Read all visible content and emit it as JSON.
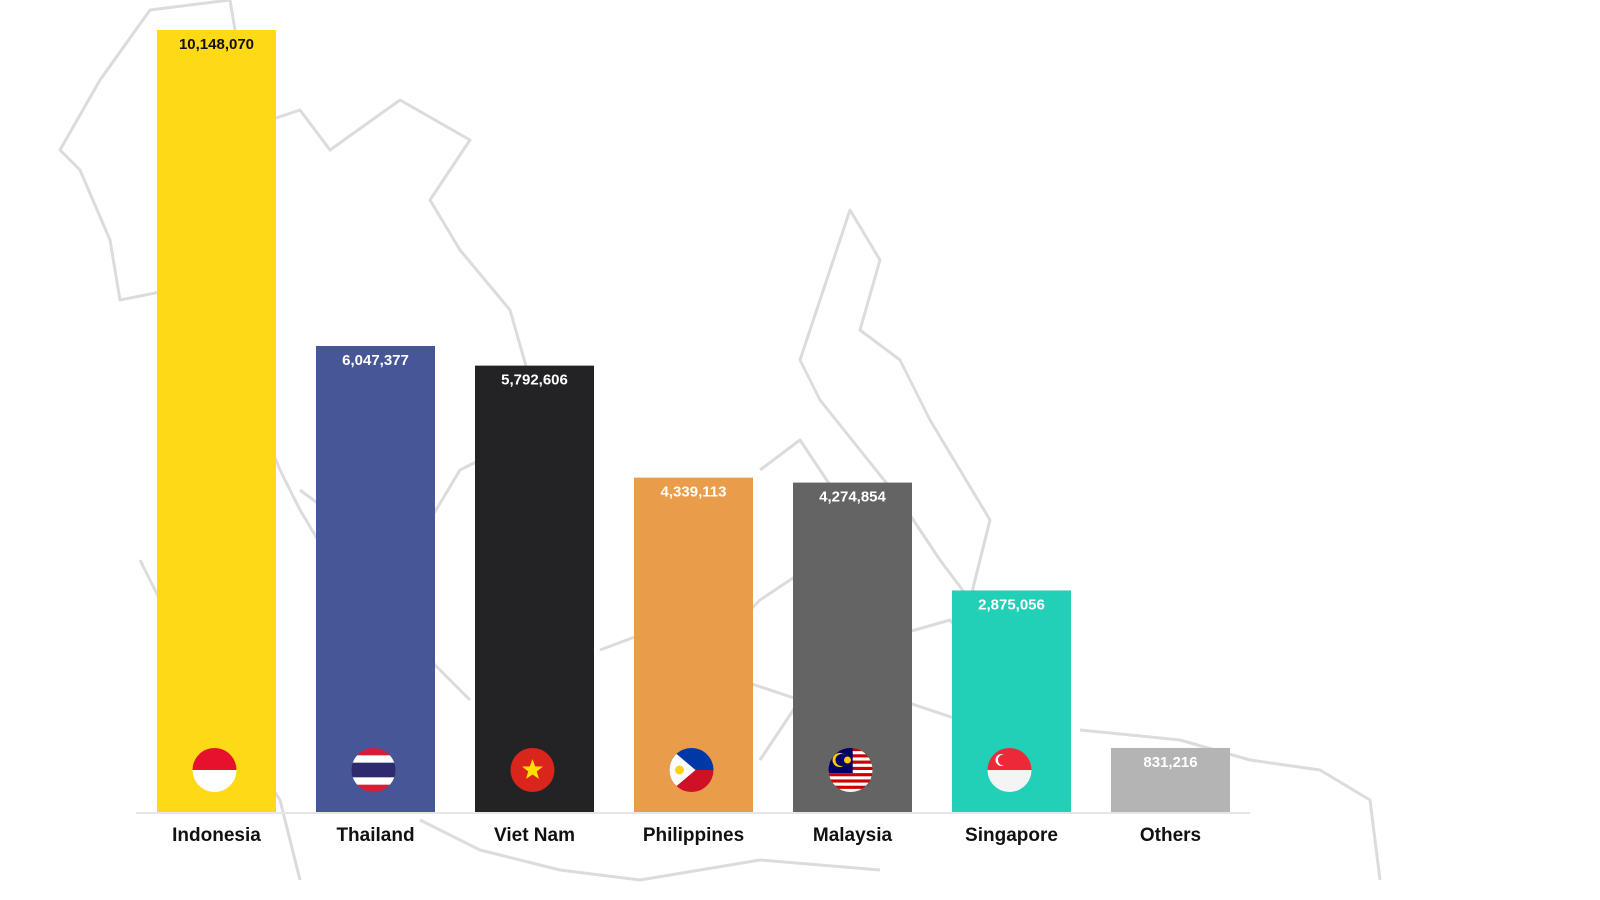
{
  "chart_data": {
    "type": "bar",
    "title": "",
    "xlabel": "",
    "ylabel": "",
    "ylim": [
      0,
      10148070
    ],
    "grid": false,
    "categories": [
      "Indonesia",
      "Thailand",
      "Viet Nam",
      "Philippines",
      "Malaysia",
      "Singapore",
      "Others"
    ],
    "values": [
      10148070,
      6047377,
      5792606,
      4339113,
      4274854,
      2875056,
      831216
    ],
    "value_labels": [
      "10,148,070",
      "6,047,377",
      "5,792,606",
      "4,339,113",
      "4,274,854",
      "2,875,056",
      "831,216"
    ],
    "colors": [
      "#fdd916",
      "#465696",
      "#232326",
      "#e99c4a",
      "#646464",
      "#22d0b8",
      "#b4b4b4"
    ],
    "label_colors": [
      "#111111",
      "#ffffff",
      "#ffffff",
      "#ffffff",
      "#ffffff",
      "#ffffff",
      "#ffffff"
    ],
    "flag_icons": [
      "indonesia-flag-icon",
      "thailand-flag-icon",
      "vietnam-flag-icon",
      "philippines-flag-icon",
      "malaysia-flag-icon",
      "singapore-flag-icon",
      ""
    ],
    "background": "southeast-asia-map-outline"
  }
}
